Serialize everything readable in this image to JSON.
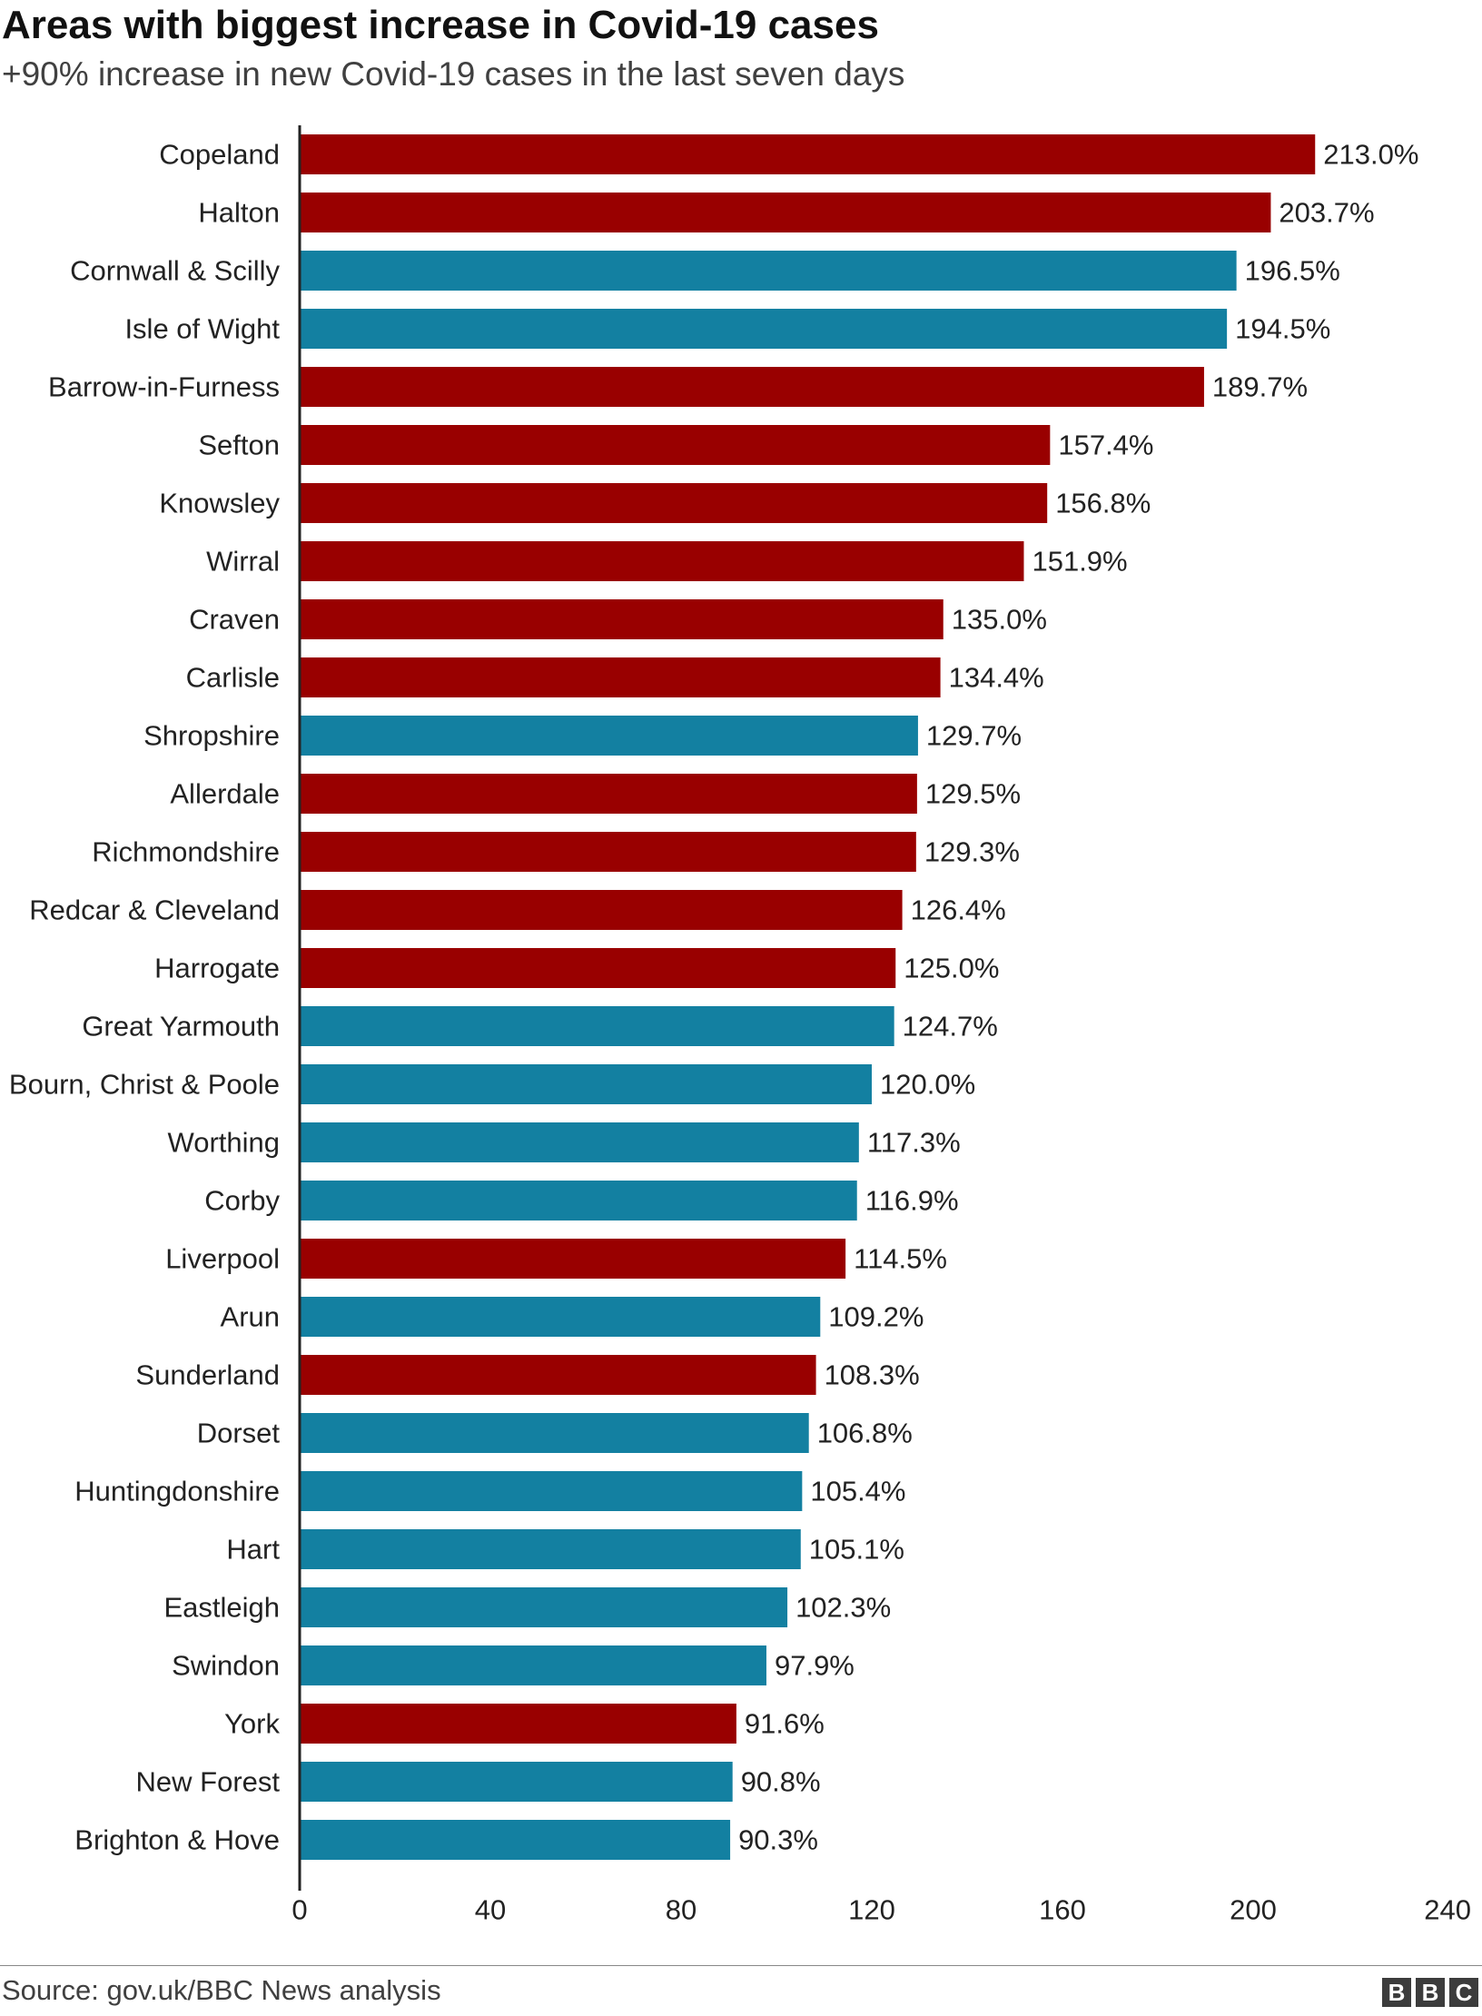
{
  "colors": {
    "red": "#990000",
    "blue": "#1380a1",
    "axis": "#222222"
  },
  "logo": {
    "letters": [
      "B",
      "B",
      "C"
    ]
  },
  "chart_data": {
    "type": "bar",
    "orientation": "horizontal",
    "title": "Areas with biggest increase in Covid-19 cases",
    "subtitle": "+90% increase in new Covid-19 cases in the last seven days",
    "source": "Source: gov.uk/BBC News analysis",
    "xlim": [
      0,
      240
    ],
    "xticks": [
      0,
      40,
      80,
      120,
      160,
      200,
      240
    ],
    "grid": false,
    "categories": [
      "Copeland",
      "Halton",
      "Cornwall & Scilly",
      "Isle of Wight",
      "Barrow-in-Furness",
      "Sefton",
      "Knowsley",
      "Wirral",
      "Craven",
      "Carlisle",
      "Shropshire",
      "Allerdale",
      "Richmondshire",
      "Redcar & Cleveland",
      "Harrogate",
      "Great Yarmouth",
      "Bourn, Christ & Poole",
      "Worthing",
      "Corby",
      "Liverpool",
      "Arun",
      "Sunderland",
      "Dorset",
      "Huntingdonshire",
      "Hart",
      "Eastleigh",
      "Swindon",
      "York",
      "New Forest",
      "Brighton & Hove"
    ],
    "values": [
      213.0,
      203.7,
      196.5,
      194.5,
      189.7,
      157.4,
      156.8,
      151.9,
      135.0,
      134.4,
      129.7,
      129.5,
      129.3,
      126.4,
      125.0,
      124.7,
      120.0,
      117.3,
      116.9,
      114.5,
      109.2,
      108.3,
      106.8,
      105.4,
      105.1,
      102.3,
      97.9,
      91.6,
      90.8,
      90.3
    ],
    "value_labels": [
      "213.0%",
      "203.7%",
      "196.5%",
      "194.5%",
      "189.7%",
      "157.4%",
      "156.8%",
      "151.9%",
      "135.0%",
      "134.4%",
      "129.7%",
      "129.5%",
      "129.3%",
      "126.4%",
      "125.0%",
      "124.7%",
      "120.0%",
      "117.3%",
      "116.9%",
      "114.5%",
      "109.2%",
      "108.3%",
      "106.8%",
      "105.4%",
      "105.1%",
      "102.3%",
      "97.9%",
      "91.6%",
      "90.8%",
      "90.3%"
    ],
    "bar_colors": [
      "red",
      "red",
      "blue",
      "blue",
      "red",
      "red",
      "red",
      "red",
      "red",
      "red",
      "blue",
      "red",
      "red",
      "red",
      "red",
      "blue",
      "blue",
      "blue",
      "blue",
      "red",
      "blue",
      "red",
      "blue",
      "blue",
      "blue",
      "blue",
      "blue",
      "red",
      "blue",
      "blue"
    ]
  }
}
